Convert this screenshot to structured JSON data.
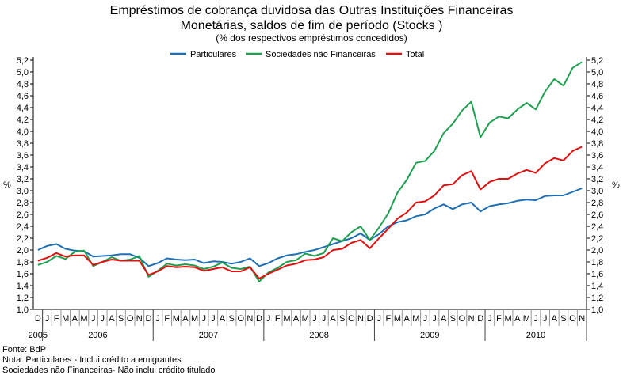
{
  "chart_data": {
    "type": "line",
    "title": "Empréstimos de cobrança duvidosa das Outras Instituições Financeiras",
    "title_line2": "Monetárias, saldos de fim de período (Stocks )",
    "subtitle": "(% dos respectivos empréstimos concedidos)",
    "ylabel": "%",
    "ylim": [
      1.0,
      5.2
    ],
    "yticks": [
      "1,0",
      "1,2",
      "1,4",
      "1,6",
      "1,8",
      "2,0",
      "2,2",
      "2,4",
      "2,6",
      "2,8",
      "3,0",
      "3,2",
      "3,4",
      "3,6",
      "3,8",
      "4,0",
      "4,2",
      "4,4",
      "4,6",
      "4,8",
      "5,0",
      "5,2"
    ],
    "legend_position": "top-center",
    "month_labels": [
      "D",
      "J",
      "F",
      "M",
      "A",
      "M",
      "J",
      "J",
      "A",
      "S",
      "O",
      "N",
      "D",
      "J",
      "F",
      "M",
      "A",
      "M",
      "J",
      "J",
      "A",
      "S",
      "O",
      "N",
      "D",
      "J",
      "F",
      "M",
      "A",
      "M",
      "J",
      "J",
      "A",
      "S",
      "O",
      "N",
      "D",
      "J",
      "F",
      "M",
      "A",
      "M",
      "J",
      "J",
      "A",
      "S",
      "O",
      "N",
      "D",
      "J",
      "F",
      "M",
      "A",
      "M",
      "J",
      "J",
      "A",
      "S",
      "O",
      "N"
    ],
    "years": [
      {
        "label": "2005",
        "start": 0,
        "end": 0
      },
      {
        "label": "2006",
        "start": 1,
        "end": 12
      },
      {
        "label": "2007",
        "start": 13,
        "end": 24
      },
      {
        "label": "2008",
        "start": 25,
        "end": 36
      },
      {
        "label": "2009",
        "start": 37,
        "end": 48
      },
      {
        "label": "2010",
        "start": 49,
        "end": 59
      }
    ],
    "series": [
      {
        "name": "Particulares",
        "color": "#1f6fb5",
        "values": [
          2.0,
          2.07,
          2.1,
          2.02,
          1.99,
          1.98,
          1.89,
          1.9,
          1.91,
          1.93,
          1.93,
          1.87,
          1.73,
          1.78,
          1.86,
          1.84,
          1.83,
          1.84,
          1.78,
          1.81,
          1.8,
          1.77,
          1.8,
          1.86,
          1.73,
          1.78,
          1.86,
          1.91,
          1.93,
          1.97,
          2.0,
          2.05,
          2.1,
          2.15,
          2.2,
          2.28,
          2.17,
          2.27,
          2.4,
          2.47,
          2.5,
          2.57,
          2.6,
          2.7,
          2.77,
          2.69,
          2.77,
          2.8,
          2.65,
          2.74,
          2.77,
          2.79,
          2.83,
          2.85,
          2.84,
          2.91,
          2.92,
          2.92,
          2.98,
          3.04
        ]
      },
      {
        "name": "Sociedades não Financeiras",
        "color": "#1fa050",
        "values": [
          1.75,
          1.8,
          1.9,
          1.85,
          1.97,
          1.99,
          1.73,
          1.8,
          1.88,
          1.82,
          1.84,
          1.9,
          1.55,
          1.65,
          1.77,
          1.74,
          1.76,
          1.74,
          1.68,
          1.72,
          1.79,
          1.7,
          1.68,
          1.72,
          1.47,
          1.62,
          1.7,
          1.8,
          1.83,
          1.94,
          1.9,
          1.95,
          2.2,
          2.15,
          2.3,
          2.4,
          2.17,
          2.38,
          2.62,
          2.97,
          3.18,
          3.47,
          3.5,
          3.67,
          3.97,
          4.13,
          4.35,
          4.5,
          3.9,
          4.15,
          4.25,
          4.22,
          4.37,
          4.48,
          4.37,
          4.67,
          4.88,
          4.77,
          5.07,
          5.17
        ]
      },
      {
        "name": "Total",
        "color": "#e01010",
        "values": [
          1.82,
          1.87,
          1.95,
          1.89,
          1.91,
          1.91,
          1.75,
          1.8,
          1.84,
          1.82,
          1.82,
          1.82,
          1.58,
          1.64,
          1.73,
          1.71,
          1.72,
          1.71,
          1.65,
          1.68,
          1.71,
          1.64,
          1.64,
          1.71,
          1.52,
          1.6,
          1.67,
          1.74,
          1.77,
          1.83,
          1.84,
          1.88,
          2.0,
          2.02,
          2.12,
          2.17,
          2.03,
          2.2,
          2.36,
          2.53,
          2.63,
          2.8,
          2.82,
          2.92,
          3.09,
          3.11,
          3.26,
          3.33,
          3.02,
          3.15,
          3.2,
          3.2,
          3.29,
          3.35,
          3.3,
          3.46,
          3.55,
          3.51,
          3.67,
          3.74
        ]
      }
    ]
  },
  "footer": {
    "source": "Fonte: BdP",
    "note1": "Nota: Particulares - Inclui crédito a emigrantes",
    "note2": "Sociedades não Financeiras- Não inclui crédito titulado"
  }
}
